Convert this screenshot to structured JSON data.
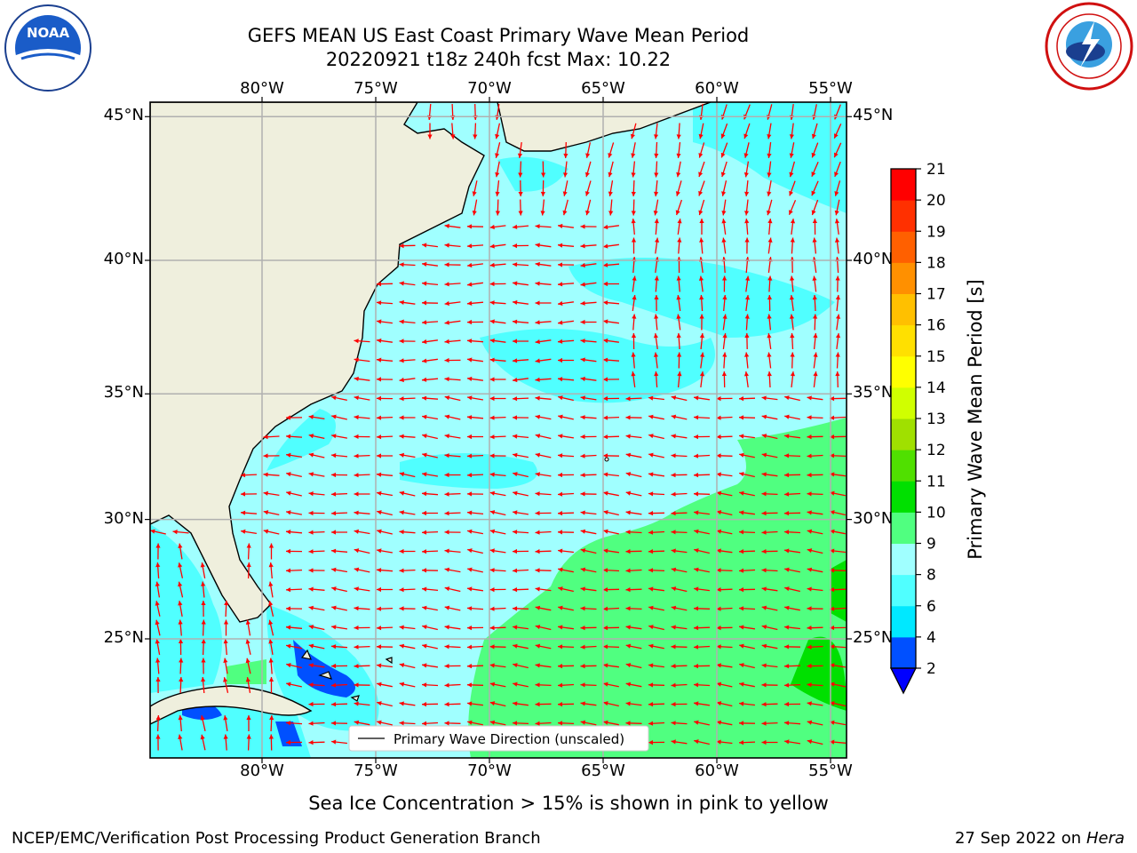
{
  "header": {
    "title_line1": "GEFS MEAN US East Coast Primary Wave Mean Period",
    "title_line2": "20220921 t18z 240h fcst   Max: 10.22"
  },
  "logos": {
    "noaa_text": "NOAA",
    "noaa_ring_text": "NATIONAL OCEANIC AND ATMOSPHERIC ADMINISTRATION · U.S. DEPARTMENT OF COMMERCE",
    "nws_ring_text": "NATIONAL WEATHER SERVICE"
  },
  "map": {
    "lon_labels": [
      "80°W",
      "75°W",
      "70°W",
      "65°W",
      "60°W",
      "55°W"
    ],
    "lat_labels": [
      "45°N",
      "40°N",
      "35°N",
      "30°N",
      "25°N"
    ],
    "lon_values": [
      -80,
      -75,
      -70,
      -65,
      -60,
      -55
    ],
    "lat_values": [
      45,
      40,
      35,
      30,
      25
    ],
    "legend_label": "Primary Wave Direction (unscaled)",
    "colors": {
      "land": "#efefdd",
      "coast": "#000000",
      "grid": "#b0b0b0",
      "arrow": "#ff0000"
    }
  },
  "colorbar": {
    "label": "Primary Wave Mean Period [s]",
    "ticks": [
      "2",
      "4",
      "6",
      "8",
      "9",
      "10",
      "11",
      "12",
      "13",
      "14",
      "15",
      "16",
      "17",
      "18",
      "19",
      "20",
      "21"
    ],
    "colors": [
      "#0050ff",
      "#00e8ff",
      "#50ffff",
      "#a0ffff",
      "#50ff80",
      "#00e000",
      "#50e000",
      "#a0e000",
      "#d0ff00",
      "#ffff00",
      "#ffe000",
      "#ffc000",
      "#ff9000",
      "#ff6000",
      "#ff3000",
      "#ff0000"
    ],
    "under_color": "#0000ff"
  },
  "footer": {
    "ice_note": "Sea Ice Concentration > 15% is shown in pink to yellow",
    "branch": "NCEP/EMC/Verification Post Processing Product Generation Branch",
    "date": "27 Sep 2022 on",
    "host": "Hera"
  }
}
